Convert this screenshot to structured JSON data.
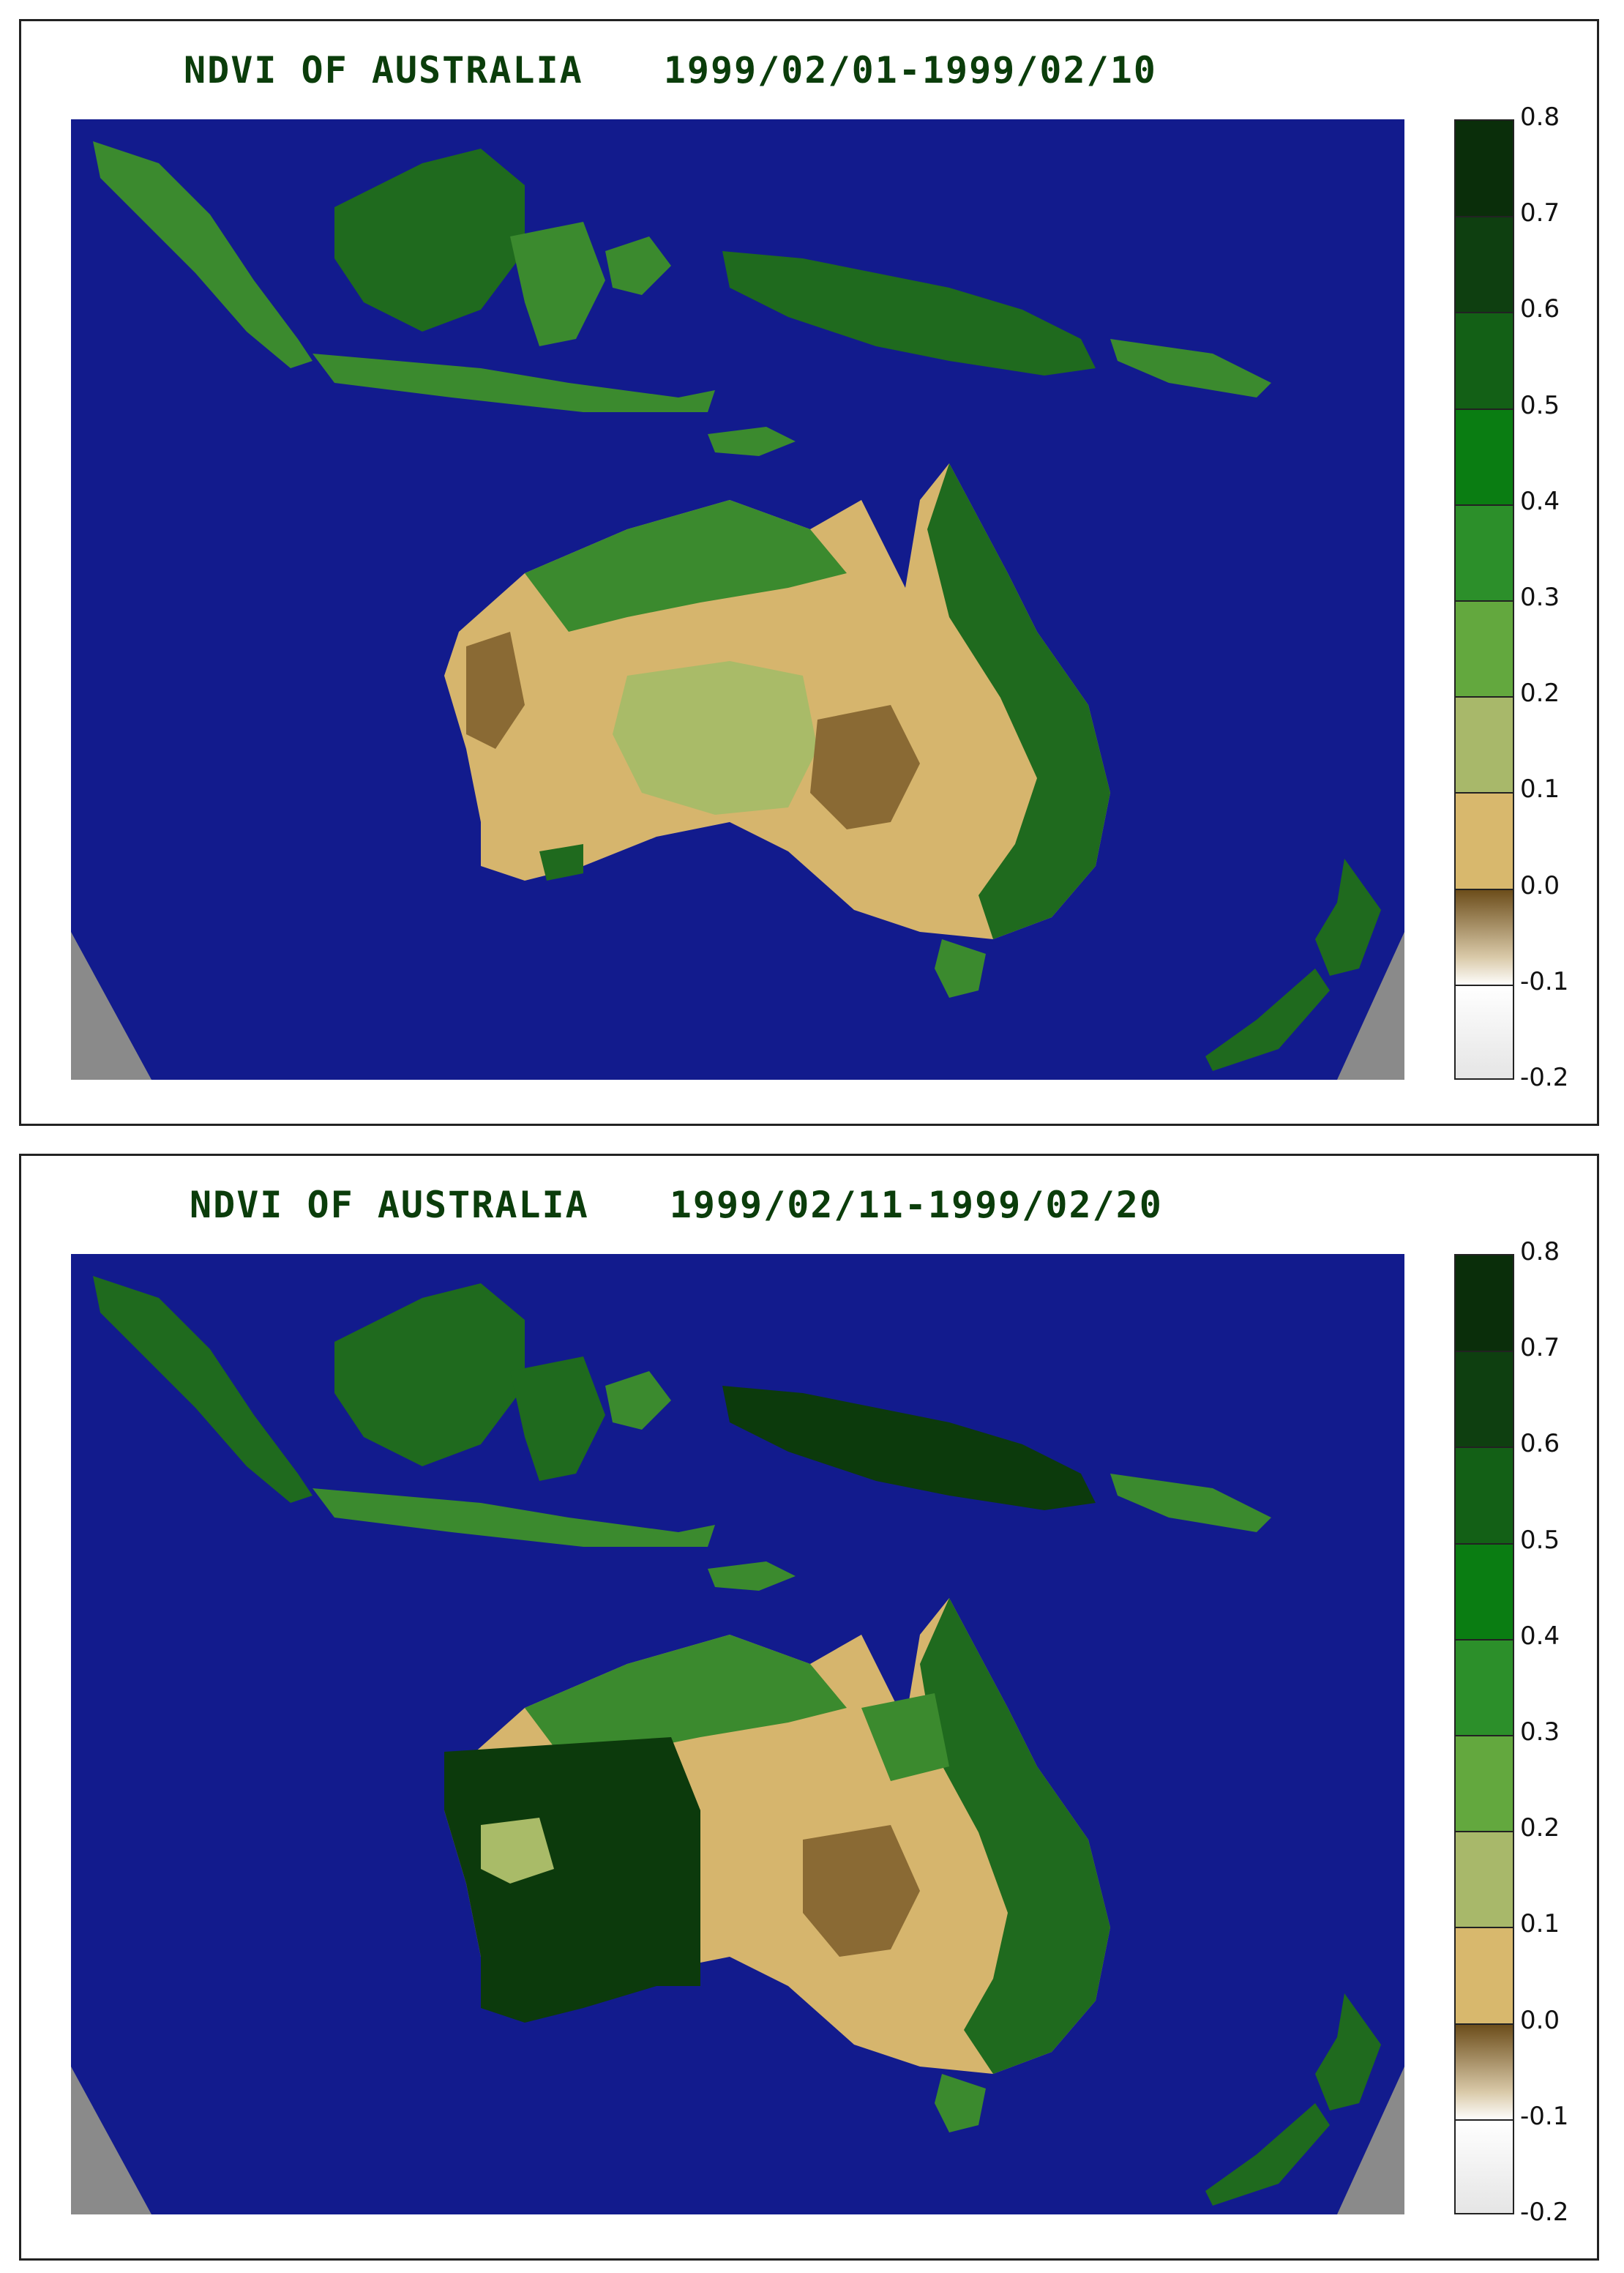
{
  "panels": [
    {
      "title": "NDVI OF AUSTRALIA",
      "period": "1999/02/01-1999/02/10"
    },
    {
      "title": "NDVI OF AUSTRALIA",
      "period": "1999/02/11-1999/02/20"
    }
  ],
  "legend": {
    "ticks": [
      "0.8",
      "0.7",
      "0.6",
      "0.5",
      "0.4",
      "0.3",
      "0.2",
      "0.1",
      "0.0",
      "-0.1",
      "-0.2"
    ],
    "colors": [
      "#0a2e0a",
      "#0e3f10",
      "#136016",
      "#0a7d12",
      "#2c8f2a",
      "#63a83e",
      "#a8b86a",
      "#d8b86d",
      "#6b4c19",
      "#ffffff"
    ]
  },
  "colors": {
    "ocean": "#121b8d",
    "nodata": "#8a8a8a",
    "arid": "#d6b56d",
    "bare": "#8a6a34",
    "sparse": "#a9bb68",
    "green": "#3b8a2e",
    "dense": "#1f6a1e",
    "darkest": "#0c3a0c"
  }
}
